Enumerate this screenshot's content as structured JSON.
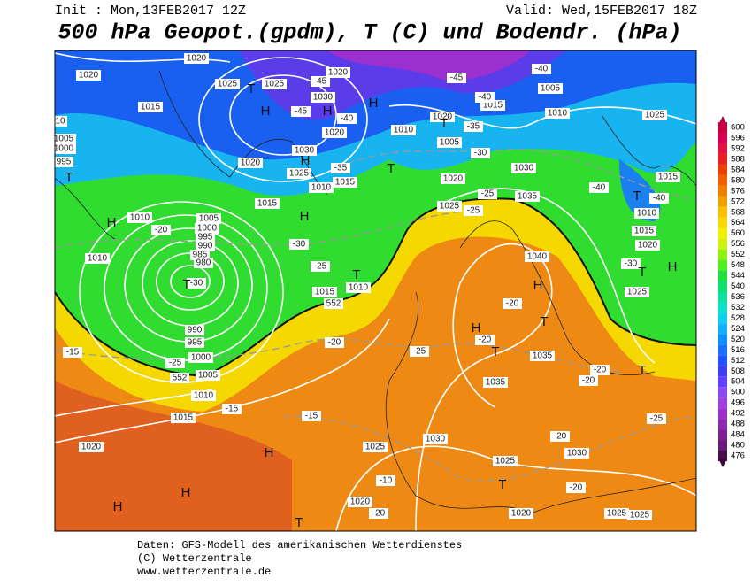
{
  "header": {
    "init": "Init : Mon,13FEB2017 12Z",
    "valid": "Valid: Wed,15FEB2017 18Z",
    "title": "500 hPa Geopot.(gpdm), T (C) und Bodendr. (hPa)"
  },
  "legend": {
    "levels": [
      476,
      480,
      484,
      488,
      492,
      496,
      500,
      504,
      508,
      512,
      516,
      520,
      524,
      528,
      532,
      536,
      540,
      544,
      548,
      552,
      556,
      560,
      564,
      568,
      572,
      576,
      580,
      584,
      588,
      592,
      596,
      600
    ]
  },
  "map_labels": [
    "1020",
    "1020",
    "1025",
    "1025",
    "1020",
    "1030",
    "1015",
    "1005",
    "1000",
    "995",
    "1020",
    "1030",
    "1020",
    "1025",
    "1010",
    "1015",
    "1010",
    "1020",
    "1005",
    "1015",
    "1005",
    "1010",
    "1025",
    "1030",
    "1020",
    "1035",
    "1025",
    "1015",
    "1010",
    "1005",
    "1000",
    "995",
    "990",
    "985",
    "980",
    "1010",
    "990",
    "995",
    "1000",
    "1005",
    "1010",
    "1015",
    "1020",
    "1015",
    "1010",
    "1040",
    "1035",
    "1035",
    "1030",
    "1025",
    "1025",
    "1030",
    "1020",
    "1020",
    "1025",
    "1025",
    "1015",
    "1010",
    "1015",
    "1020",
    "1025",
    "10",
    "-45",
    "-45",
    "-40",
    "-45",
    "-40",
    "-40",
    "-35",
    "-30",
    "-35",
    "-25",
    "-25",
    "-40",
    "-40",
    "-30",
    "-25",
    "-20",
    "-30",
    "-20",
    "-25",
    "-20",
    "-20",
    "-20",
    "-20",
    "-15",
    "-25",
    "-15",
    "-15",
    "-20",
    "-20",
    "-25",
    "-20",
    "-10",
    "-30",
    "552",
    "552",
    "H",
    "T",
    "H",
    "H",
    "T",
    "H",
    "T",
    "T",
    "H",
    "H",
    "T",
    "T",
    "H",
    "T",
    "H",
    "T",
    "T",
    "T",
    "H",
    "T",
    "H",
    "H",
    "H",
    "T",
    "T"
  ],
  "footer": {
    "source": "Daten: GFS-Modell des amerikanischen Wetterdienstes",
    "copyright": "(C) Wetterzentrale",
    "url": "www.wetterzentrale.de"
  }
}
